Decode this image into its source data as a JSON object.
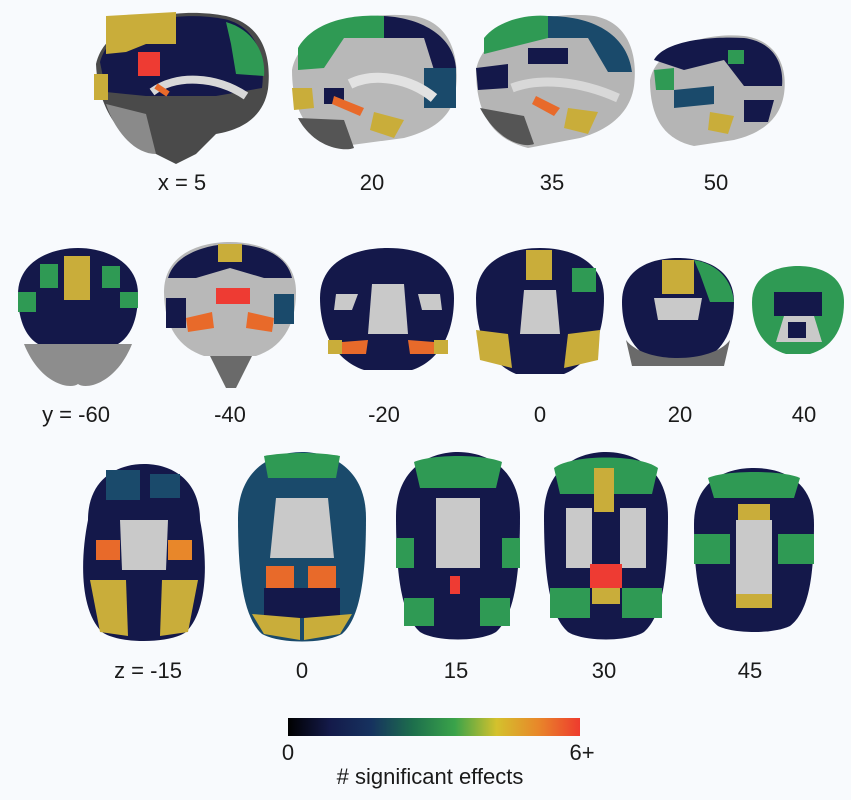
{
  "rows": [
    {
      "id": "sagittal",
      "labels": [
        "x = 5",
        "20",
        "35",
        "50"
      ]
    },
    {
      "id": "coronal",
      "labels": [
        "y = -60",
        "-40",
        "-20",
        "0",
        "20",
        "40"
      ]
    },
    {
      "id": "axial",
      "labels": [
        "z = -15",
        "0",
        "15",
        "30",
        "45"
      ]
    }
  ],
  "colorbar": {
    "min_label": "0",
    "max_label": "6+",
    "title": "# significant effects",
    "stops": [
      "#000000",
      "#141a4a",
      "#16325f",
      "#1d6f4c",
      "#3aa34a",
      "#d4c12d",
      "#e8872a",
      "#ee3b2e"
    ]
  },
  "palette": {
    "navy": "#14184a",
    "teal": "#1a4a6b",
    "green": "#2f9a54",
    "gold": "#c9ad3a",
    "orange": "#e86a2a",
    "red": "#ee3b33",
    "gray_light": "#c9c9c9",
    "gray_dark": "#4a4a4a",
    "bg": "#f8fafd"
  }
}
